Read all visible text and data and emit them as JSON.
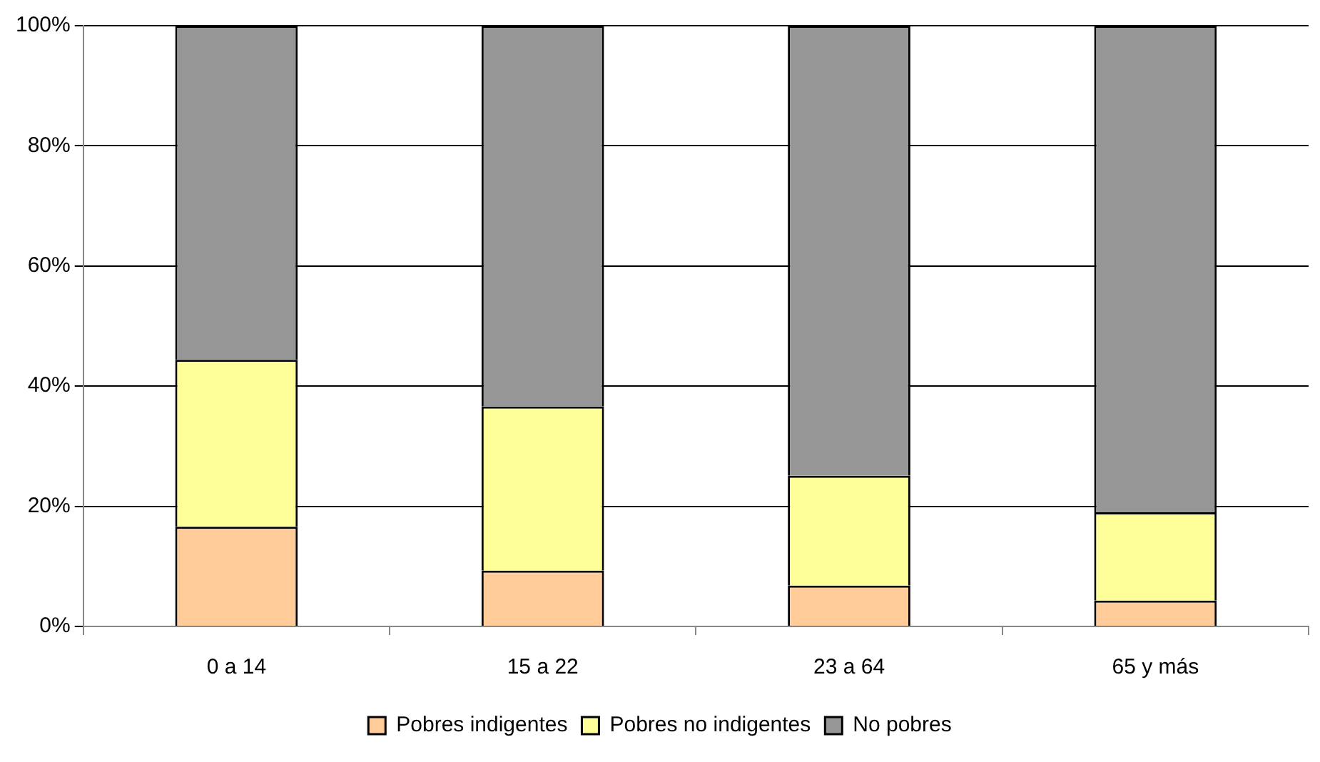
{
  "chart_data": {
    "type": "bar",
    "stacked": true,
    "categories": [
      "0 a 14",
      "15 a 22",
      "23 a 64",
      "65 y más"
    ],
    "series": [
      {
        "name": "Pobres indigentes",
        "color": "#ffcc99",
        "values": [
          16.6,
          9.3,
          6.8,
          4.3
        ]
      },
      {
        "name": "Pobres no indigentes",
        "color": "#ffff99",
        "values": [
          27.8,
          27.3,
          18.3,
          14.7
        ]
      },
      {
        "name": "No pobres",
        "color": "#969696",
        "values": [
          55.6,
          63.4,
          74.9,
          81.0
        ]
      }
    ],
    "ylim": [
      0,
      100
    ],
    "yticks": [
      {
        "value": 0,
        "label": "0%"
      },
      {
        "value": 20,
        "label": "20%"
      },
      {
        "value": 40,
        "label": "40%"
      },
      {
        "value": 60,
        "label": "60%"
      },
      {
        "value": 80,
        "label": "80%"
      },
      {
        "value": 100,
        "label": "100%"
      }
    ],
    "grid": "y",
    "legend": "bottom"
  }
}
